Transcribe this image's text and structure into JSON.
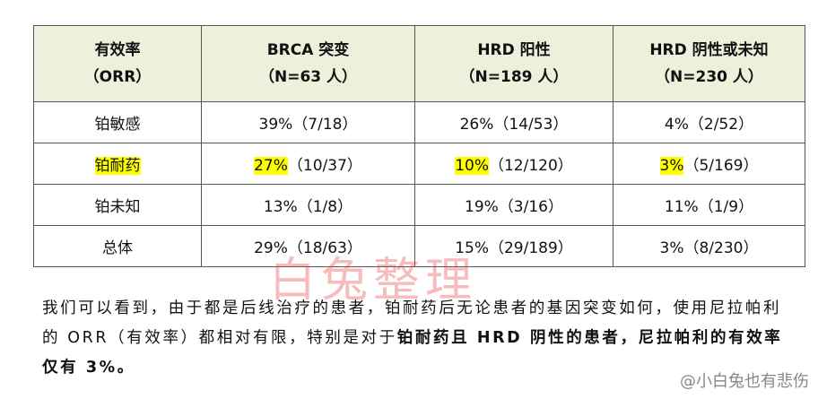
{
  "table": {
    "header": [
      [
        "有效率",
        "（ORR）"
      ],
      [
        "BRCA 突变",
        "（N=63 人）"
      ],
      [
        "HRD 阳性",
        "（N=189 人）"
      ],
      [
        "HRD 阴性或未知",
        "（N=230 人）"
      ]
    ],
    "rows": [
      {
        "label": "铂敏感",
        "cells": [
          "39%（7/18）",
          "26%（14/53）",
          "4%（2/52）"
        ]
      },
      {
        "label": "铂耐药",
        "cells": [
          [
            "27%",
            "（10/37）"
          ],
          [
            "10%",
            "（12/120）"
          ],
          [
            "3%",
            "（5/169）"
          ]
        ]
      },
      {
        "label": "铂未知",
        "cells": [
          "13%（1/8）",
          "19%（3/16）",
          "11%（1/9）"
        ]
      },
      {
        "label": "总体",
        "cells": [
          "29%（18/63）",
          "15%（29/189）",
          "3%（8/230）"
        ]
      }
    ]
  },
  "watermark": "白兔整理",
  "paragraph": {
    "text": "我们可以看到，由于都是后线治疗的患者，铂耐药后无论患者的基因突变如何，使用尼拉帕利的 ORR（有效率）都相对有限，特别是对于",
    "bold": "铂耐药且 HRD 阴性的患者，尼拉帕利的有效率仅有 3%。"
  },
  "credit": "@小白兔也有悲伤"
}
